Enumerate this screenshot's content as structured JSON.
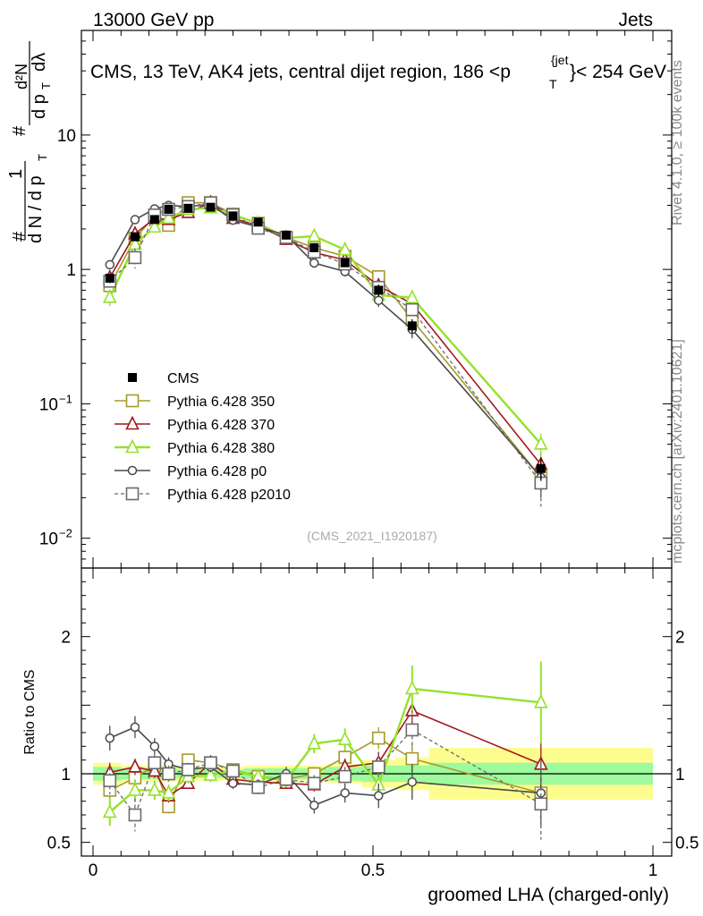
{
  "header": {
    "left": "13000 GeV pp",
    "right": "Jets",
    "title": "CMS, 13 TeV, AK4 jets, central dijet region, 186 < p_T^{jet} < 254 GeV",
    "title_prefix": "CMS, 13 TeV, AK4 jets, central dijet region, 186 <p",
    "title_sup": "{jet",
    "title_sub": "T",
    "title_suffix": "}< 254 GeV"
  },
  "side_labels": {
    "rivet": "Rivet 4.1.0, ≥ 100k events",
    "mcplots": "mcplots.cern.ch [arXiv:2401.10621]"
  },
  "watermark": "(CMS_2021_I1920187)",
  "axes": {
    "xlabel": "groomed LHA (charged-only)",
    "ylabel_ratio": "Ratio to CMS",
    "ylabel_main": "1/N dN/dp_T · d²N/(dp_T dλ)",
    "ylabel_parts": {
      "hash1": "#",
      "one": "1",
      "dN": "d N / d p",
      "T1": "T",
      "hash2": "#",
      "d2N": "d²N",
      "dpT": "d p",
      "T2": "T",
      "dlam": "dλ"
    },
    "xlim": [
      0,
      1
    ],
    "ylim_main": [
      0.006,
      60
    ],
    "ylim_ratio": [
      0.4,
      2.5
    ],
    "main_ticks": [
      {
        "value": 0.01,
        "label": "10",
        "exp": "−2"
      },
      {
        "value": 0.1,
        "label": "10",
        "exp": "−1"
      },
      {
        "value": 1,
        "label": "1",
        "exp": ""
      },
      {
        "value": 10,
        "label": "10",
        "exp": ""
      }
    ],
    "ratio_ticks": [
      {
        "value": 0.5,
        "label": "0.5"
      },
      {
        "value": 1,
        "label": "1"
      },
      {
        "value": 2,
        "label": "2"
      }
    ],
    "x_ticks": [
      {
        "value": 0,
        "label": "0"
      },
      {
        "value": 0.5,
        "label": "0.5"
      },
      {
        "value": 1,
        "label": "1"
      }
    ]
  },
  "legend": [
    {
      "label": "CMS"
    },
    {
      "label": "Pythia 6.428 350"
    },
    {
      "label": "Pythia 6.428 370"
    },
    {
      "label": "Pythia 6.428 380"
    },
    {
      "label": "Pythia 6.428 p0"
    },
    {
      "label": "Pythia 6.428 p2010"
    }
  ],
  "chart_data": {
    "type": "line",
    "scale": "log",
    "x": [
      0.03,
      0.075,
      0.11,
      0.135,
      0.17,
      0.21,
      0.25,
      0.295,
      0.345,
      0.395,
      0.45,
      0.51,
      0.57,
      0.8
    ],
    "bin_edges": [
      0,
      0.05,
      0.09,
      0.12,
      0.15,
      0.19,
      0.23,
      0.27,
      0.32,
      0.37,
      0.42,
      0.48,
      0.54,
      0.6,
      1.0
    ],
    "reference": {
      "name": "CMS",
      "values": [
        0.86,
        1.75,
        2.35,
        2.8,
        2.85,
        2.9,
        2.5,
        2.25,
        1.8,
        1.45,
        1.12,
        0.7,
        0.38,
        0.033
      ],
      "band_inner": [
        0.05,
        0.04,
        0.04,
        0.04,
        0.03,
        0.03,
        0.03,
        0.04,
        0.04,
        0.04,
        0.05,
        0.06,
        0.06,
        0.08
      ],
      "band_outer": [
        0.08,
        0.06,
        0.06,
        0.06,
        0.05,
        0.05,
        0.05,
        0.06,
        0.06,
        0.06,
        0.07,
        0.1,
        0.12,
        0.19
      ]
    },
    "series": [
      {
        "name": "Pythia 6.428 350",
        "color": "#a59a2c",
        "marker": "square-open",
        "dashed": false,
        "width": 1.6,
        "ratio": [
          0.88,
          0.97,
          1.06,
          0.76,
          1.1,
          1.08,
          1.03,
          0.98,
          0.96,
          1.0,
          1.12,
          1.26,
          1.11,
          0.86
        ],
        "ratio_err": [
          0.07,
          0.06,
          0.05,
          0.05,
          0.04,
          0.04,
          0.04,
          0.04,
          0.04,
          0.05,
          0.06,
          0.08,
          0.1,
          0.2
        ]
      },
      {
        "name": "Pythia 6.428 370",
        "color": "#a3171d",
        "marker": "triangle-open",
        "dashed": false,
        "width": 1.6,
        "ratio": [
          1.01,
          1.05,
          1.02,
          0.84,
          0.93,
          1.08,
          0.96,
          0.94,
          0.93,
          0.92,
          1.05,
          1.08,
          1.46,
          1.07
        ],
        "ratio_err": [
          0.07,
          0.06,
          0.05,
          0.05,
          0.04,
          0.04,
          0.04,
          0.04,
          0.04,
          0.05,
          0.06,
          0.08,
          0.12,
          0.25
        ]
      },
      {
        "name": "Pythia 6.428 380",
        "color": "#95e12a",
        "marker": "triangle-open",
        "dashed": false,
        "width": 2.4,
        "ratio": [
          0.72,
          0.88,
          0.88,
          0.86,
          0.98,
          0.99,
          1.02,
          0.98,
          0.95,
          1.22,
          1.25,
          0.92,
          1.62,
          1.52
        ],
        "ratio_err": [
          0.1,
          0.08,
          0.07,
          0.06,
          0.05,
          0.05,
          0.05,
          0.05,
          0.05,
          0.07,
          0.08,
          0.1,
          0.17,
          0.3
        ]
      },
      {
        "name": "Pythia 6.428 p0",
        "color": "#4a4a4a",
        "marker": "circle-open",
        "dashed": false,
        "width": 1.6,
        "ratio": [
          1.26,
          1.34,
          1.2,
          1.07,
          1.03,
          1.05,
          0.93,
          0.92,
          1.0,
          0.77,
          0.86,
          0.84,
          0.94,
          0.86
        ],
        "ratio_err": [
          0.09,
          0.08,
          0.06,
          0.05,
          0.04,
          0.04,
          0.04,
          0.04,
          0.05,
          0.06,
          0.07,
          0.09,
          0.13,
          0.25
        ]
      },
      {
        "name": "Pythia 6.428 p2010",
        "color": "#6a6a6a",
        "marker": "square-open",
        "dashed": true,
        "width": 1.3,
        "ratio": [
          0.95,
          0.7,
          1.08,
          1.0,
          1.03,
          1.08,
          1.02,
          0.9,
          0.96,
          0.93,
          0.98,
          1.05,
          1.32,
          0.78
        ],
        "ratio_err": [
          0.1,
          0.12,
          0.07,
          0.06,
          0.05,
          0.05,
          0.05,
          0.05,
          0.05,
          0.06,
          0.07,
          0.09,
          0.14,
          0.26
        ]
      }
    ]
  }
}
